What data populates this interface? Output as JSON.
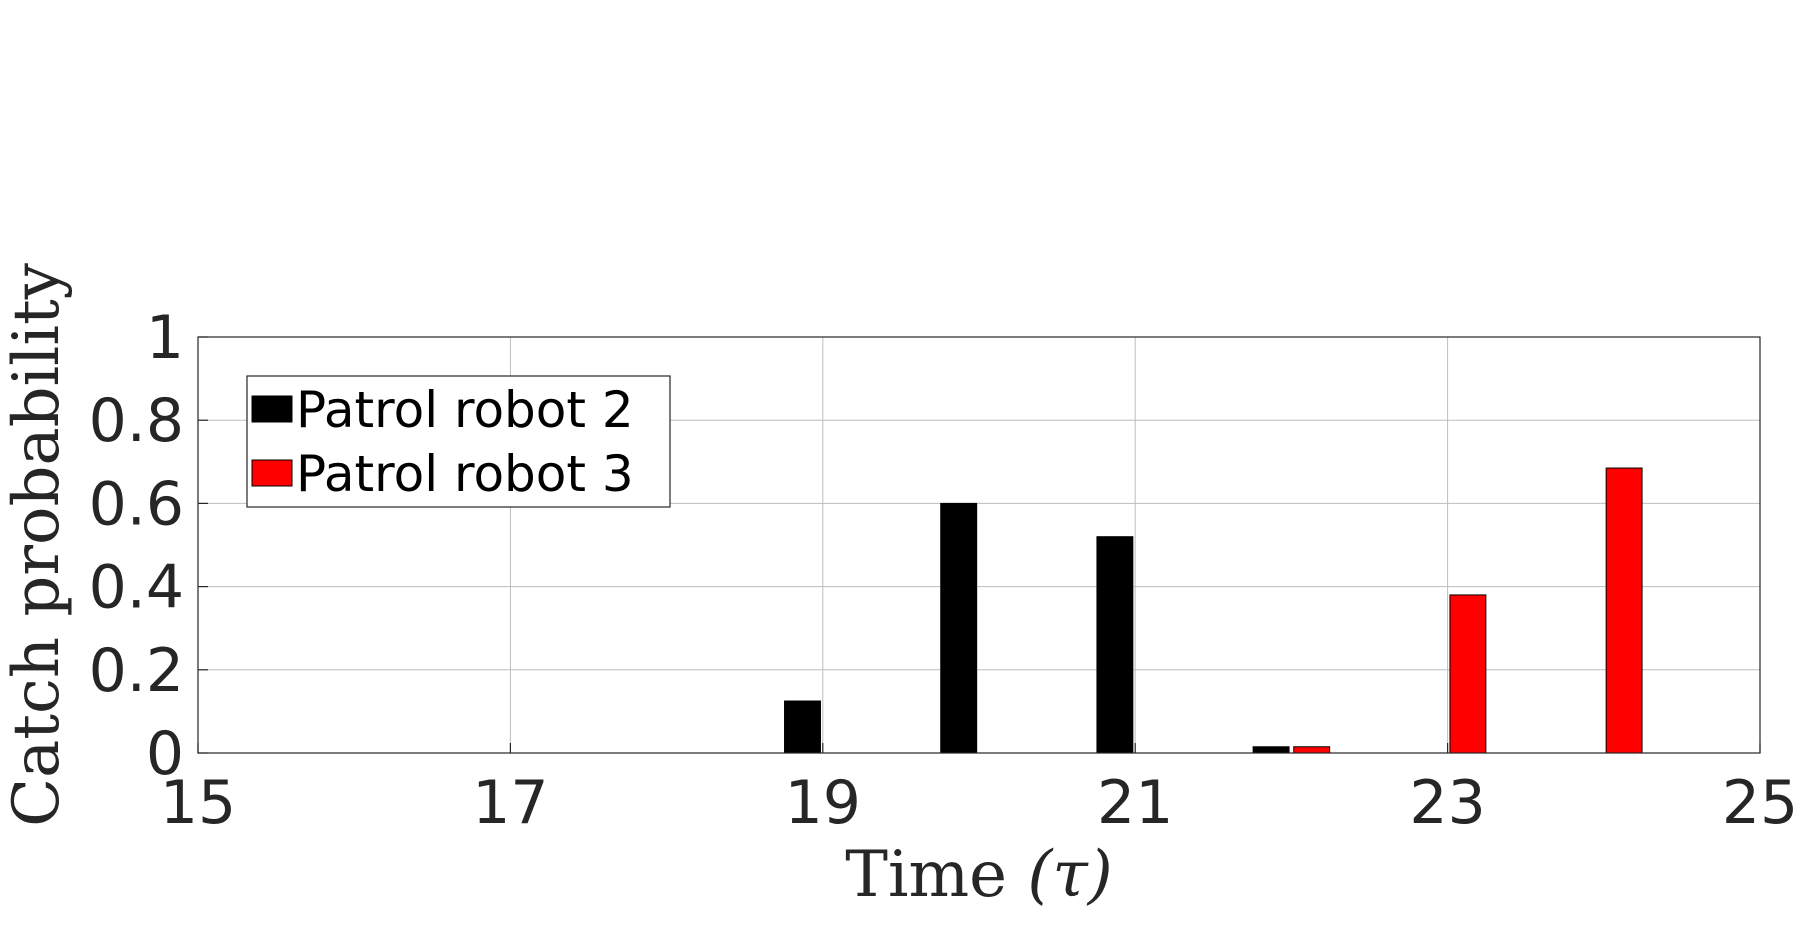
{
  "chart_data": {
    "type": "bar",
    "xlabel": "Time (τ)",
    "xlabel_main": "Time ",
    "xlabel_symbol": "(τ)",
    "ylabel": "Catch probability",
    "xlim": [
      15,
      25
    ],
    "ylim": [
      0,
      1
    ],
    "x_ticks": [
      15,
      17,
      19,
      21,
      23,
      25
    ],
    "y_ticks": [
      0,
      0.2,
      0.4,
      0.6,
      0.8,
      1
    ],
    "y_tick_labels": [
      "0",
      "0.2",
      "0.4",
      "0.6",
      "0.8",
      "1"
    ],
    "grid": true,
    "legend_position": "top-left",
    "bar_width": 0.23,
    "series": [
      {
        "name": "Patrol robot 2",
        "color": "#000000",
        "points": [
          {
            "x": 18.87,
            "y": 0.125
          },
          {
            "x": 19.87,
            "y": 0.6
          },
          {
            "x": 20.87,
            "y": 0.52
          },
          {
            "x": 21.87,
            "y": 0.015
          }
        ]
      },
      {
        "name": "Patrol robot 3",
        "color": "#ff0000",
        "points": [
          {
            "x": 22.13,
            "y": 0.015
          },
          {
            "x": 23.13,
            "y": 0.38
          },
          {
            "x": 24.13,
            "y": 0.685
          }
        ]
      }
    ]
  }
}
